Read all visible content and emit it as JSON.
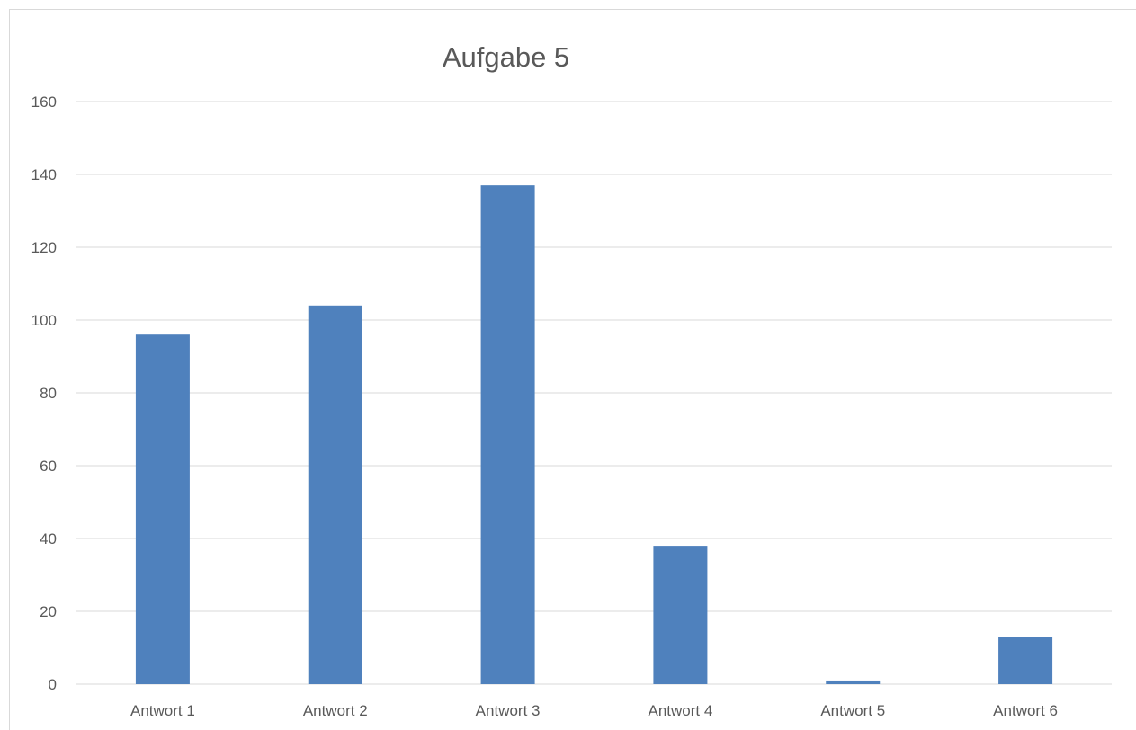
{
  "chart_data": {
    "type": "bar",
    "title": "Aufgabe 5",
    "categories": [
      "Antwort 1",
      "Antwort 2",
      "Antwort 3",
      "Antwort 4",
      "Antwort 5",
      "Antwort 6"
    ],
    "values": [
      96,
      104,
      137,
      38,
      1,
      13
    ],
    "ylim": [
      0,
      160
    ],
    "yticks": [
      "0",
      "20",
      "40",
      "60",
      "80",
      "100",
      "120",
      "140",
      "160"
    ],
    "grid": true,
    "legend": false,
    "bar_color": "#4f81bd",
    "grid_color": "#d9d9d9",
    "text_color": "#595959"
  }
}
